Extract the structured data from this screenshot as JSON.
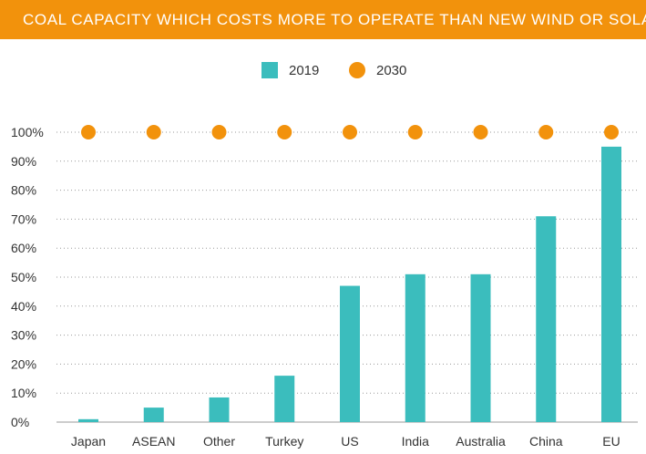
{
  "title": "COAL CAPACITY WHICH COSTS MORE TO OPERATE THAN NEW WIND OR SOLAR",
  "colors": {
    "accent": "#f2920c",
    "bar": "#3bbdbd"
  },
  "chart_data": {
    "type": "bar",
    "title": "COAL CAPACITY WHICH COSTS MORE TO OPERATE THAN NEW WIND OR SOLAR",
    "categories": [
      "Japan",
      "ASEAN",
      "Other",
      "Turkey",
      "US",
      "India",
      "Australia",
      "China",
      "EU"
    ],
    "series": [
      {
        "name": "2019",
        "kind": "bar",
        "color": "#3bbdbd",
        "values": [
          1,
          5,
          8.5,
          16,
          47,
          51,
          51,
          71,
          95
        ]
      },
      {
        "name": "2030",
        "kind": "dot",
        "color": "#f2920c",
        "values": [
          100,
          100,
          100,
          100,
          100,
          100,
          100,
          100,
          100
        ]
      }
    ],
    "ylim": [
      0,
      100
    ],
    "yticks": [
      "0%",
      "10%",
      "20%",
      "30%",
      "40%",
      "50%",
      "60%",
      "70%",
      "80%",
      "90%",
      "100%"
    ],
    "xlabel": "",
    "ylabel": "",
    "grid": "dotted horizontal",
    "legend": "top-center"
  }
}
